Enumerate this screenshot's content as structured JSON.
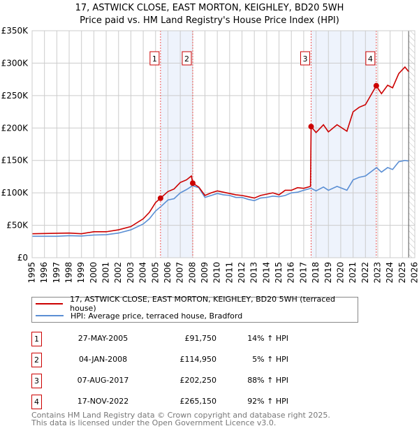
{
  "chart_data": {
    "type": "line",
    "title": "17, ASTWICK CLOSE, EAST MORTON, KEIGHLEY, BD20 5WH",
    "subtitle": "Price paid vs. HM Land Registry's House Price Index (HPI)",
    "xlim": [
      1995,
      2026
    ],
    "ylim": [
      0,
      350000
    ],
    "x_ticks": [
      "1995",
      "1996",
      "1997",
      "1998",
      "1999",
      "2000",
      "2001",
      "2002",
      "2003",
      "2004",
      "2005",
      "2006",
      "2007",
      "2008",
      "2009",
      "2010",
      "2011",
      "2012",
      "2013",
      "2014",
      "2015",
      "2016",
      "2017",
      "2018",
      "2019",
      "2020",
      "2021",
      "2022",
      "2023",
      "2024",
      "2025",
      "2026"
    ],
    "y_ticks": [
      {
        "v": 0,
        "label": "£0"
      },
      {
        "v": 50000,
        "label": "£50K"
      },
      {
        "v": 100000,
        "label": "£100K"
      },
      {
        "v": 150000,
        "label": "£150K"
      },
      {
        "v": 200000,
        "label": "£200K"
      },
      {
        "v": 250000,
        "label": "£250K"
      },
      {
        "v": 300000,
        "label": "£300K"
      },
      {
        "v": 350000,
        "label": "£350K"
      }
    ],
    "grid": true,
    "series": [
      {
        "name": "17, ASTWICK CLOSE, EAST MORTON, KEIGHLEY, BD20 5WH (terraced house)",
        "color": "#cc0000",
        "x": [
          1995,
          1998,
          1999,
          2000,
          2001,
          2002,
          2003,
          2004,
          2004.5,
          2005,
          2005.4,
          2006,
          2006.5,
          2007,
          2007.5,
          2007.9,
          2008.01,
          2008.5,
          2009,
          2009.5,
          2010,
          2010.5,
          2011,
          2011.5,
          2012,
          2012.5,
          2013,
          2013.5,
          2014,
          2014.5,
          2015,
          2015.5,
          2016,
          2016.5,
          2017,
          2017.55,
          2017.6,
          2018,
          2018.6,
          2019,
          2019.7,
          2020.5,
          2021,
          2021.5,
          2022,
          2022.88,
          2023.3,
          2023.8,
          2024.2,
          2024.7,
          2025.2,
          2025.5
        ],
        "y": [
          37000,
          38000,
          37000,
          40000,
          40000,
          43000,
          48000,
          60000,
          70000,
          85000,
          91750,
          102000,
          106000,
          116000,
          120000,
          126000,
          114950,
          109000,
          96000,
          100000,
          103000,
          101000,
          99000,
          97000,
          96000,
          94000,
          92000,
          96000,
          98000,
          100000,
          97000,
          104000,
          104000,
          108000,
          107000,
          110000,
          202250,
          193000,
          205000,
          194000,
          205000,
          195000,
          225000,
          232000,
          236000,
          265150,
          253000,
          266000,
          262000,
          284000,
          294000,
          287000
        ]
      },
      {
        "name": "HPI: Average price, terraced house, Bradford",
        "color": "#5b8fd4",
        "x": [
          1995,
          1996,
          1997,
          1998,
          1999,
          2000,
          2001,
          2002,
          2003,
          2004,
          2004.5,
          2005,
          2005.5,
          2006,
          2006.5,
          2007,
          2007.5,
          2008,
          2008.5,
          2009,
          2009.5,
          2010,
          2010.5,
          2011,
          2011.5,
          2012,
          2012.5,
          2013,
          2013.5,
          2014,
          2014.5,
          2015,
          2015.5,
          2016,
          2016.5,
          2017,
          2017.6,
          2018,
          2018.6,
          2019,
          2019.7,
          2020.5,
          2021,
          2021.5,
          2022,
          2022.9,
          2023.3,
          2023.8,
          2024.2,
          2024.7,
          2025.2,
          2025.5
        ],
        "y": [
          33000,
          33000,
          33000,
          34000,
          33500,
          35000,
          35500,
          38000,
          43000,
          52000,
          60000,
          72000,
          80000,
          89000,
          91000,
          100000,
          105000,
          111000,
          108000,
          93000,
          96000,
          99000,
          97000,
          96000,
          93000,
          93000,
          90000,
          88000,
          92000,
          93000,
          95000,
          94000,
          96000,
          100000,
          101000,
          104000,
          107000,
          103000,
          109000,
          104000,
          110000,
          104000,
          120000,
          124000,
          126000,
          139000,
          132000,
          139000,
          136000,
          148000,
          150000,
          149000
        ]
      }
    ],
    "sales": [
      {
        "n": "1",
        "x": 2005.4,
        "price": 91750
      },
      {
        "n": "2",
        "x": 2008.01,
        "price": 114950
      },
      {
        "n": "3",
        "x": 2017.6,
        "price": 202250
      },
      {
        "n": "4",
        "x": 2022.88,
        "price": 265150
      }
    ],
    "shaded": [
      [
        2005.4,
        2008.01
      ],
      [
        2017.6,
        2022.88
      ]
    ],
    "forecast_from": 2025.5,
    "legend_placement": "bottom"
  },
  "table": [
    {
      "n": "1",
      "date": "27-MAY-2005",
      "price": "£91,750",
      "hpi": "14% ↑ HPI"
    },
    {
      "n": "2",
      "date": "04-JAN-2008",
      "price": "£114,950",
      "hpi": "5% ↑ HPI"
    },
    {
      "n": "3",
      "date": "07-AUG-2017",
      "price": "£202,250",
      "hpi": "88% ↑ HPI"
    },
    {
      "n": "4",
      "date": "17-NOV-2022",
      "price": "£265,150",
      "hpi": "92% ↑ HPI"
    }
  ],
  "footer": {
    "line1": "Contains HM Land Registry data © Crown copyright and database right 2025.",
    "line2": "This data is licensed under the Open Government Licence v3.0."
  }
}
